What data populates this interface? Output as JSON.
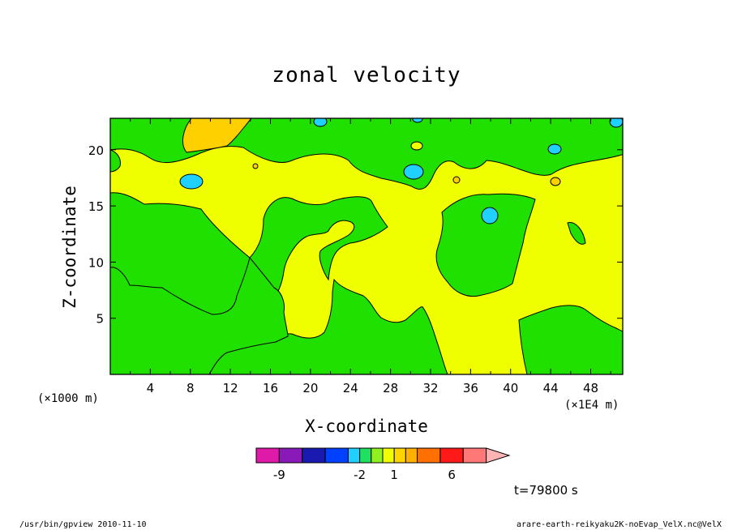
{
  "chart_data": {
    "type": "heatmap",
    "title": "zonal velocity",
    "xlabel": "X-coordinate",
    "ylabel": "Z-coordinate",
    "x_unit": "(×1E4 m)",
    "z_unit": "(×1000 m)",
    "xlim": [
      0,
      51.2
    ],
    "ylim": [
      0,
      22.8
    ],
    "x_ticks": [
      4,
      8,
      12,
      16,
      20,
      24,
      28,
      32,
      36,
      40,
      44,
      48
    ],
    "y_ticks": [
      5,
      10,
      15,
      20
    ],
    "time_label": "t=79800 s",
    "colorbar": {
      "levels": [
        -11,
        -9,
        -7,
        -5,
        -3,
        -2,
        -1,
        0,
        1,
        2,
        3,
        5,
        7,
        9,
        11
      ],
      "colors": [
        "#e01aa8",
        "#8a1ab8",
        "#1a1ab0",
        "#0040ff",
        "#20d0ff",
        "#20e060",
        "#90f020",
        "#f0ff00",
        "#ffd400",
        "#ffb000",
        "#ff7000",
        "#ff1a1a",
        "#ff7878",
        "#ffb4b4"
      ],
      "tick_labels": [
        {
          "text": "-9",
          "value": -9
        },
        {
          "text": "-2",
          "value": -2
        },
        {
          "text": "1",
          "value": 1
        },
        {
          "text": "6",
          "value": 6
        }
      ]
    },
    "field_fill": {
      "positive": "#f0ff00",
      "negative": "#20e000",
      "strong_positive": "#ffd000",
      "strong_negative": "#20d0ff"
    }
  },
  "footer": {
    "left": "/usr/bin/gpview  2010-11-10",
    "right": "arare-earth-reikyaku2K-noEvap_VelX.nc@VelX"
  }
}
